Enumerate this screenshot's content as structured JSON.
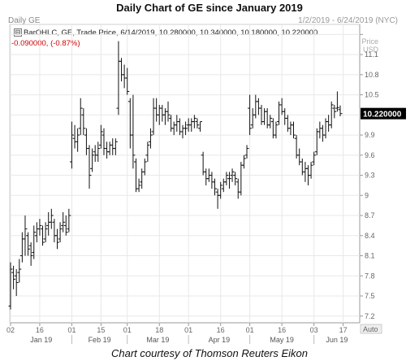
{
  "page": {
    "title": "Daily Chart of GE since January 2019",
    "caption": "Chart courtesy of Thomson Reuters Eikon"
  },
  "chart_window": {
    "title": "Daily GE",
    "date_range": "1/2/2019 - 6/24/2019 (NYC)",
    "price_label": "Price",
    "currency": "USD",
    "info_line1": "BarOHLC, GE, Trade Price, 6/14/2019, 10.280000, 10.340000, 10.180000, 10.220000",
    "info_line2": "-0.090000, (-0.87%)",
    "last_price_label": "10.220000",
    "auto_label": "Auto"
  },
  "colors": {
    "bars": "#111111",
    "grid": "#e8e8e8",
    "label_box": "#000000",
    "change_text": "#d00000"
  },
  "chart_data": {
    "type": "ohlc",
    "ylim": [
      7.1,
      11.55
    ],
    "y_ticks": [
      7.2,
      7.5,
      7.8,
      8.1,
      8.4,
      8.7,
      9,
      9.3,
      9.6,
      9.9,
      10.2,
      10.5,
      10.8,
      11.1,
      11.4
    ],
    "y_tick_labels": [
      "7.2",
      "7.5",
      "7.8",
      "8.1",
      "8.4",
      "8.7",
      "9",
      "9.3",
      "9.6",
      "9.9",
      "",
      "10.5",
      "10.8",
      "11.1",
      ""
    ],
    "x_tick_labels": [
      "02",
      "16",
      "01",
      "15",
      "01",
      "18",
      "01",
      "16",
      "01",
      "16",
      "03",
      "17"
    ],
    "month_labels": [
      "Jan 19",
      "Feb 19",
      "Mar 19",
      "Apr 19",
      "May 19",
      "Jun 19"
    ],
    "last_close": 10.22,
    "bars": [
      {
        "date": "2019-01-02",
        "o": 7.35,
        "h": 8.0,
        "l": 7.3,
        "c": 7.9
      },
      {
        "date": "2019-01-03",
        "o": 7.85,
        "h": 7.95,
        "l": 7.6,
        "c": 7.75
      },
      {
        "date": "2019-01-04",
        "o": 7.8,
        "h": 7.9,
        "l": 7.5,
        "c": 7.7
      },
      {
        "date": "2019-01-07",
        "o": 7.85,
        "h": 8.05,
        "l": 7.7,
        "c": 7.9
      },
      {
        "date": "2019-01-08",
        "o": 8.1,
        "h": 8.45,
        "l": 8.0,
        "c": 8.35
      },
      {
        "date": "2019-01-09",
        "o": 8.35,
        "h": 8.7,
        "l": 8.1,
        "c": 8.5
      },
      {
        "date": "2019-01-10",
        "o": 8.4,
        "h": 8.45,
        "l": 8.1,
        "c": 8.2
      },
      {
        "date": "2019-01-11",
        "o": 8.25,
        "h": 8.3,
        "l": 7.95,
        "c": 8.1
      },
      {
        "date": "2019-01-14",
        "o": 8.15,
        "h": 8.55,
        "l": 8.05,
        "c": 8.45
      },
      {
        "date": "2019-01-15",
        "o": 8.4,
        "h": 8.6,
        "l": 8.3,
        "c": 8.5
      },
      {
        "date": "2019-01-16",
        "o": 8.5,
        "h": 8.65,
        "l": 8.4,
        "c": 8.55
      },
      {
        "date": "2019-01-17",
        "o": 8.5,
        "h": 8.55,
        "l": 8.25,
        "c": 8.3
      },
      {
        "date": "2019-01-18",
        "o": 8.35,
        "h": 8.6,
        "l": 8.3,
        "c": 8.5
      },
      {
        "date": "2019-01-22",
        "o": 8.55,
        "h": 8.75,
        "l": 8.4,
        "c": 8.6
      },
      {
        "date": "2019-01-23",
        "o": 8.6,
        "h": 8.8,
        "l": 8.5,
        "c": 8.7
      },
      {
        "date": "2019-01-24",
        "o": 8.6,
        "h": 8.65,
        "l": 8.3,
        "c": 8.4
      },
      {
        "date": "2019-01-25",
        "o": 8.4,
        "h": 8.5,
        "l": 8.2,
        "c": 8.3
      },
      {
        "date": "2019-01-28",
        "o": 8.35,
        "h": 8.6,
        "l": 8.3,
        "c": 8.5
      },
      {
        "date": "2019-01-29",
        "o": 8.55,
        "h": 8.75,
        "l": 8.45,
        "c": 8.6
      },
      {
        "date": "2019-01-30",
        "o": 8.55,
        "h": 8.7,
        "l": 8.4,
        "c": 8.45
      },
      {
        "date": "2019-01-31",
        "o": 8.5,
        "h": 8.8,
        "l": 8.45,
        "c": 8.7
      },
      {
        "date": "2019-02-01",
        "o": 9.5,
        "h": 10.1,
        "l": 9.4,
        "c": 9.9
      },
      {
        "date": "2019-02-04",
        "o": 9.85,
        "h": 10.05,
        "l": 9.7,
        "c": 9.8
      },
      {
        "date": "2019-02-05",
        "o": 9.8,
        "h": 10.0,
        "l": 9.65,
        "c": 9.9
      },
      {
        "date": "2019-02-06",
        "o": 10.0,
        "h": 10.45,
        "l": 9.9,
        "c": 10.3
      },
      {
        "date": "2019-02-07",
        "o": 10.2,
        "h": 10.3,
        "l": 9.9,
        "c": 10.0
      },
      {
        "date": "2019-02-08",
        "o": 9.9,
        "h": 10.0,
        "l": 9.6,
        "c": 9.7
      },
      {
        "date": "2019-02-11",
        "o": 9.7,
        "h": 9.75,
        "l": 9.1,
        "c": 9.3
      },
      {
        "date": "2019-02-12",
        "o": 9.4,
        "h": 9.7,
        "l": 9.35,
        "c": 9.6
      },
      {
        "date": "2019-02-13",
        "o": 9.65,
        "h": 9.75,
        "l": 9.5,
        "c": 9.6
      },
      {
        "date": "2019-02-14",
        "o": 9.6,
        "h": 9.8,
        "l": 9.5,
        "c": 9.7
      },
      {
        "date": "2019-02-15",
        "o": 9.75,
        "h": 10.05,
        "l": 9.7,
        "c": 9.95
      },
      {
        "date": "2019-02-19",
        "o": 9.9,
        "h": 10.0,
        "l": 9.6,
        "c": 9.7
      },
      {
        "date": "2019-02-20",
        "o": 9.7,
        "h": 9.8,
        "l": 9.55,
        "c": 9.65
      },
      {
        "date": "2019-02-21",
        "o": 9.65,
        "h": 9.8,
        "l": 9.6,
        "c": 9.75
      },
      {
        "date": "2019-02-22",
        "o": 9.75,
        "h": 9.85,
        "l": 9.6,
        "c": 9.7
      },
      {
        "date": "2019-02-25",
        "o": 9.7,
        "h": 9.85,
        "l": 9.6,
        "c": 9.8
      },
      {
        "date": "2019-02-26",
        "o": 10.3,
        "h": 11.3,
        "l": 10.2,
        "c": 11.0
      },
      {
        "date": "2019-02-27",
        "o": 11.0,
        "h": 11.05,
        "l": 10.7,
        "c": 10.8
      },
      {
        "date": "2019-02-28",
        "o": 10.8,
        "h": 10.95,
        "l": 10.6,
        "c": 10.75
      },
      {
        "date": "2019-03-01",
        "o": 10.75,
        "h": 10.9,
        "l": 10.5,
        "c": 10.55
      },
      {
        "date": "2019-03-04",
        "o": 10.4,
        "h": 10.45,
        "l": 9.7,
        "c": 9.9
      },
      {
        "date": "2019-03-05",
        "o": 9.9,
        "h": 10.5,
        "l": 9.4,
        "c": 9.6
      },
      {
        "date": "2019-03-06",
        "o": 9.5,
        "h": 9.55,
        "l": 9.05,
        "c": 9.1
      },
      {
        "date": "2019-03-07",
        "o": 9.1,
        "h": 9.25,
        "l": 9.05,
        "c": 9.15
      },
      {
        "date": "2019-03-08",
        "o": 9.2,
        "h": 9.4,
        "l": 9.1,
        "c": 9.35
      },
      {
        "date": "2019-03-11",
        "o": 9.35,
        "h": 9.55,
        "l": 9.3,
        "c": 9.5
      },
      {
        "date": "2019-03-12",
        "o": 9.6,
        "h": 9.8,
        "l": 9.5,
        "c": 9.75
      },
      {
        "date": "2019-03-13",
        "o": 9.8,
        "h": 10.0,
        "l": 9.7,
        "c": 9.9
      },
      {
        "date": "2019-03-14",
        "o": 9.95,
        "h": 10.45,
        "l": 9.9,
        "c": 10.3
      },
      {
        "date": "2019-03-15",
        "o": 10.3,
        "h": 10.45,
        "l": 10.1,
        "c": 10.2
      },
      {
        "date": "2019-03-18",
        "o": 10.2,
        "h": 10.35,
        "l": 10.05,
        "c": 10.3
      },
      {
        "date": "2019-03-19",
        "o": 10.3,
        "h": 10.35,
        "l": 10.1,
        "c": 10.2
      },
      {
        "date": "2019-03-20",
        "o": 10.2,
        "h": 10.3,
        "l": 10.05,
        "c": 10.25
      },
      {
        "date": "2019-03-21",
        "o": 10.25,
        "h": 10.4,
        "l": 10.1,
        "c": 10.2
      },
      {
        "date": "2019-03-22",
        "o": 10.15,
        "h": 10.2,
        "l": 9.95,
        "c": 10.0
      },
      {
        "date": "2019-03-25",
        "o": 10.0,
        "h": 10.1,
        "l": 9.9,
        "c": 10.05
      },
      {
        "date": "2019-03-26",
        "o": 10.05,
        "h": 10.2,
        "l": 9.95,
        "c": 10.1
      },
      {
        "date": "2019-03-27",
        "o": 10.1,
        "h": 10.15,
        "l": 9.9,
        "c": 9.95
      },
      {
        "date": "2019-03-28",
        "o": 9.95,
        "h": 10.05,
        "l": 9.85,
        "c": 10.0
      },
      {
        "date": "2019-03-29",
        "o": 10.0,
        "h": 10.1,
        "l": 9.9,
        "c": 10.0
      },
      {
        "date": "2019-04-01",
        "o": 10.05,
        "h": 10.15,
        "l": 9.95,
        "c": 10.05
      },
      {
        "date": "2019-04-02",
        "o": 10.05,
        "h": 10.15,
        "l": 9.95,
        "c": 10.1
      },
      {
        "date": "2019-04-03",
        "o": 10.1,
        "h": 10.2,
        "l": 10.0,
        "c": 10.15
      },
      {
        "date": "2019-04-04",
        "o": 10.1,
        "h": 10.15,
        "l": 10.0,
        "c": 10.05
      },
      {
        "date": "2019-04-05",
        "o": 10.0,
        "h": 10.1,
        "l": 9.95,
        "c": 10.1
      },
      {
        "date": "2019-04-08",
        "o": 9.6,
        "h": 9.65,
        "l": 9.3,
        "c": 9.35
      },
      {
        "date": "2019-04-09",
        "o": 9.35,
        "h": 9.4,
        "l": 9.15,
        "c": 9.25
      },
      {
        "date": "2019-04-10",
        "o": 9.25,
        "h": 9.4,
        "l": 9.2,
        "c": 9.3
      },
      {
        "date": "2019-04-11",
        "o": 9.3,
        "h": 9.35,
        "l": 9.1,
        "c": 9.2
      },
      {
        "date": "2019-04-12",
        "o": 9.2,
        "h": 9.25,
        "l": 9.0,
        "c": 9.1
      },
      {
        "date": "2019-04-15",
        "o": 9.05,
        "h": 9.1,
        "l": 8.8,
        "c": 9.0
      },
      {
        "date": "2019-04-16",
        "o": 9.0,
        "h": 9.2,
        "l": 8.95,
        "c": 9.15
      },
      {
        "date": "2019-04-17",
        "o": 9.1,
        "h": 9.25,
        "l": 9.05,
        "c": 9.2
      },
      {
        "date": "2019-04-18",
        "o": 9.2,
        "h": 9.35,
        "l": 9.15,
        "c": 9.3
      },
      {
        "date": "2019-04-22",
        "o": 9.25,
        "h": 9.35,
        "l": 9.1,
        "c": 9.25
      },
      {
        "date": "2019-04-23",
        "o": 9.3,
        "h": 9.4,
        "l": 9.2,
        "c": 9.35
      },
      {
        "date": "2019-04-24",
        "o": 9.3,
        "h": 9.35,
        "l": 9.15,
        "c": 9.25
      },
      {
        "date": "2019-04-25",
        "o": 9.2,
        "h": 9.25,
        "l": 8.95,
        "c": 9.05
      },
      {
        "date": "2019-04-26",
        "o": 9.05,
        "h": 9.5,
        "l": 9.0,
        "c": 9.45
      },
      {
        "date": "2019-04-29",
        "o": 9.45,
        "h": 9.6,
        "l": 9.4,
        "c": 9.55
      },
      {
        "date": "2019-04-30",
        "o": 9.6,
        "h": 9.75,
        "l": 9.55,
        "c": 9.7
      },
      {
        "date": "2019-05-01",
        "o": 10.3,
        "h": 10.5,
        "l": 9.9,
        "c": 10.0
      },
      {
        "date": "2019-05-02",
        "o": 10.05,
        "h": 10.3,
        "l": 10.0,
        "c": 10.2
      },
      {
        "date": "2019-05-03",
        "o": 10.2,
        "h": 10.5,
        "l": 10.15,
        "c": 10.4
      },
      {
        "date": "2019-05-06",
        "o": 10.4,
        "h": 10.45,
        "l": 10.2,
        "c": 10.3
      },
      {
        "date": "2019-05-07",
        "o": 10.3,
        "h": 10.35,
        "l": 10.05,
        "c": 10.1
      },
      {
        "date": "2019-05-08",
        "o": 10.1,
        "h": 10.3,
        "l": 10.05,
        "c": 10.25
      },
      {
        "date": "2019-05-09",
        "o": 10.25,
        "h": 10.3,
        "l": 10.0,
        "c": 10.05
      },
      {
        "date": "2019-05-10",
        "o": 10.05,
        "h": 10.2,
        "l": 10.0,
        "c": 10.15
      },
      {
        "date": "2019-05-13",
        "o": 10.1,
        "h": 10.15,
        "l": 9.85,
        "c": 9.9
      },
      {
        "date": "2019-05-14",
        "o": 9.9,
        "h": 10.1,
        "l": 9.85,
        "c": 10.05
      },
      {
        "date": "2019-05-15",
        "o": 10.1,
        "h": 10.4,
        "l": 10.05,
        "c": 10.35
      },
      {
        "date": "2019-05-16",
        "o": 10.35,
        "h": 10.45,
        "l": 10.2,
        "c": 10.25
      },
      {
        "date": "2019-05-17",
        "o": 10.25,
        "h": 10.3,
        "l": 10.05,
        "c": 10.15
      },
      {
        "date": "2019-05-20",
        "o": 10.15,
        "h": 10.2,
        "l": 9.95,
        "c": 10.0
      },
      {
        "date": "2019-05-21",
        "o": 10.0,
        "h": 10.1,
        "l": 9.9,
        "c": 10.05
      },
      {
        "date": "2019-05-22",
        "o": 10.05,
        "h": 10.1,
        "l": 9.85,
        "c": 9.9
      },
      {
        "date": "2019-05-23",
        "o": 9.85,
        "h": 9.9,
        "l": 9.55,
        "c": 9.6
      },
      {
        "date": "2019-05-24",
        "o": 9.6,
        "h": 9.7,
        "l": 9.45,
        "c": 9.5
      },
      {
        "date": "2019-05-28",
        "o": 9.5,
        "h": 9.55,
        "l": 9.3,
        "c": 9.35
      },
      {
        "date": "2019-05-29",
        "o": 9.35,
        "h": 9.5,
        "l": 9.2,
        "c": 9.4
      },
      {
        "date": "2019-05-30",
        "o": 9.4,
        "h": 9.45,
        "l": 9.15,
        "c": 9.3
      },
      {
        "date": "2019-05-31",
        "o": 9.3,
        "h": 9.5,
        "l": 9.25,
        "c": 9.45
      },
      {
        "date": "2019-06-03",
        "o": 9.5,
        "h": 9.65,
        "l": 9.45,
        "c": 9.6
      },
      {
        "date": "2019-06-04",
        "o": 9.65,
        "h": 10.0,
        "l": 9.6,
        "c": 9.95
      },
      {
        "date": "2019-06-05",
        "o": 9.95,
        "h": 10.1,
        "l": 9.85,
        "c": 10.0
      },
      {
        "date": "2019-06-06",
        "o": 10.0,
        "h": 10.05,
        "l": 9.8,
        "c": 9.9
      },
      {
        "date": "2019-06-07",
        "o": 9.9,
        "h": 10.15,
        "l": 9.85,
        "c": 10.1
      },
      {
        "date": "2019-06-10",
        "o": 10.1,
        "h": 10.2,
        "l": 9.95,
        "c": 10.05
      },
      {
        "date": "2019-06-11",
        "o": 10.05,
        "h": 10.4,
        "l": 10.0,
        "c": 10.35
      },
      {
        "date": "2019-06-12",
        "o": 10.3,
        "h": 10.35,
        "l": 10.15,
        "c": 10.25
      },
      {
        "date": "2019-06-13",
        "o": 10.3,
        "h": 10.55,
        "l": 10.25,
        "c": 10.31
      },
      {
        "date": "2019-06-14",
        "o": 10.28,
        "h": 10.34,
        "l": 10.18,
        "c": 10.22
      }
    ]
  }
}
